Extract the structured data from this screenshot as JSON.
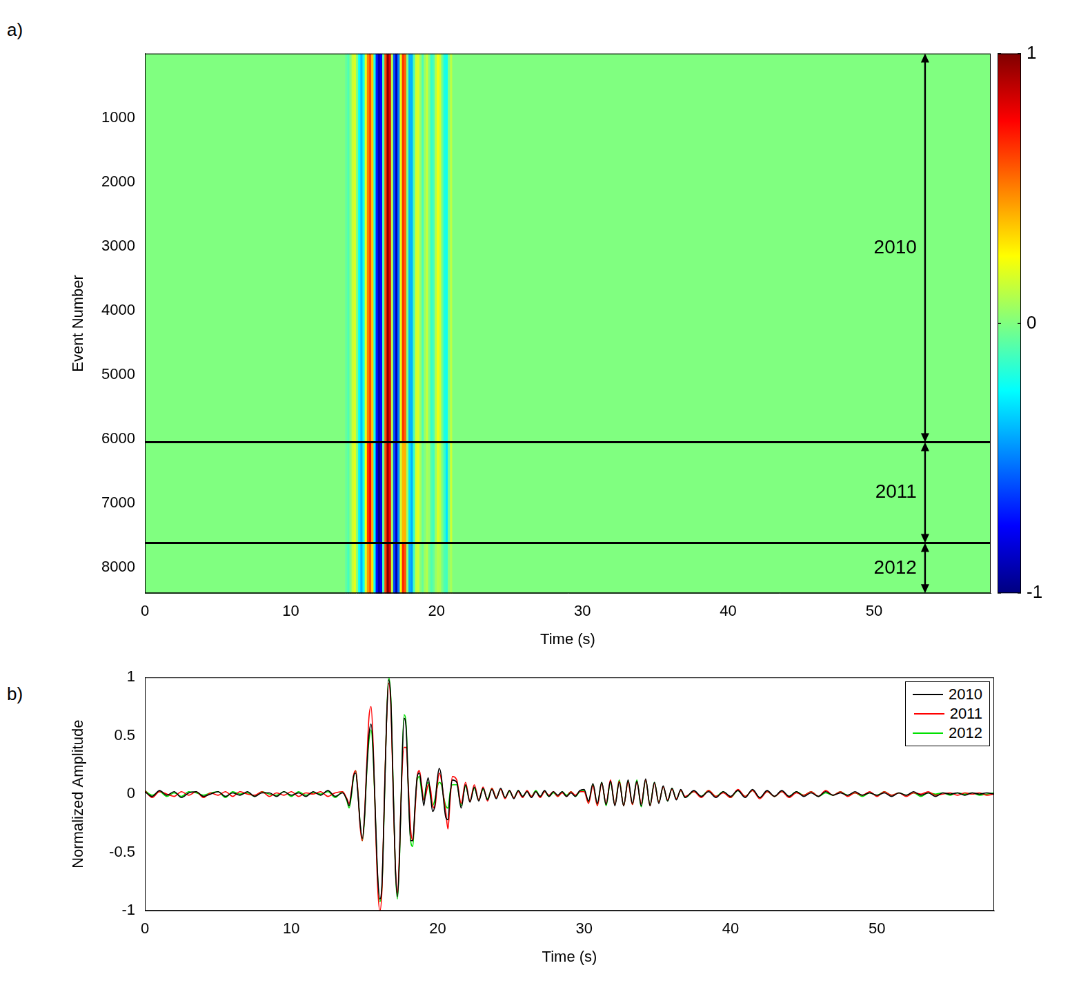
{
  "chart_data": [
    {
      "type": "heatmap",
      "panel_label": "a)",
      "x_label": "Time (s)",
      "y_label": "Event Number",
      "xlim": [
        0,
        58
      ],
      "xticks": [
        0,
        10,
        20,
        30,
        40,
        50
      ],
      "ylim": [
        8400,
        0
      ],
      "yticks": [
        1000,
        2000,
        3000,
        4000,
        5000,
        6000,
        7000,
        8000
      ],
      "grid": false,
      "x_edges": [
        0,
        13.725,
        13.875,
        14.025,
        14.175,
        14.325,
        14.475,
        14.625,
        14.775,
        14.925,
        15.075,
        15.225,
        15.375,
        15.525,
        15.675,
        15.825,
        15.975,
        16.125,
        16.275,
        16.425,
        16.575,
        16.725,
        16.875,
        17.025,
        17.175,
        17.325,
        17.475,
        17.625,
        17.775,
        17.925,
        18.075,
        18.225,
        18.375,
        18.525,
        18.675,
        18.825,
        18.975,
        19.125,
        19.275,
        19.425,
        19.575,
        19.725,
        19.875,
        20.025,
        20.175,
        20.325,
        20.475,
        20.625,
        20.775,
        20.925,
        21.075,
        58
      ],
      "y_edges": [
        0,
        6050,
        7620,
        8400
      ],
      "cells": [
        [
          0,
          -0.05,
          -0.1,
          0.0,
          0.15,
          0.18,
          0.0,
          -0.25,
          -0.38,
          -0.2,
          0.2,
          0.5,
          0.6,
          0.35,
          -0.2,
          -0.7,
          -0.9,
          -0.75,
          -0.1,
          0.6,
          0.98,
          0.8,
          0.1,
          -0.6,
          -0.88,
          -0.5,
          0.2,
          0.65,
          0.55,
          0.0,
          -0.4,
          -0.4,
          -0.1,
          0.15,
          0.18,
          0.05,
          -0.1,
          0.05,
          0.14,
          0.0,
          -0.15,
          -0.1,
          0.1,
          0.22,
          0.15,
          -0.05,
          -0.2,
          -0.22,
          0.0,
          0.12,
          0
        ],
        [
          0,
          -0.04,
          -0.08,
          0.02,
          0.16,
          0.2,
          0.02,
          -0.28,
          -0.4,
          -0.18,
          0.25,
          0.65,
          0.75,
          0.4,
          -0.25,
          -0.8,
          -1.0,
          -0.8,
          -0.05,
          0.6,
          0.95,
          0.75,
          0.05,
          -0.6,
          -0.85,
          -0.45,
          0.15,
          0.4,
          0.4,
          0.05,
          -0.3,
          -0.4,
          -0.15,
          0.15,
          0.2,
          0.08,
          -0.05,
          0.0,
          0.08,
          0.05,
          -0.1,
          -0.12,
          0.05,
          0.18,
          0.12,
          -0.02,
          -0.15,
          -0.3,
          -0.05,
          0.15,
          0
        ],
        [
          0,
          -0.06,
          -0.12,
          -0.02,
          0.14,
          0.2,
          0.02,
          -0.25,
          -0.4,
          -0.22,
          0.18,
          0.45,
          0.55,
          0.3,
          -0.22,
          -0.72,
          -0.92,
          -0.78,
          -0.12,
          0.62,
          1.0,
          0.82,
          0.12,
          -0.62,
          -0.9,
          -0.52,
          0.22,
          0.68,
          0.58,
          0.02,
          -0.4,
          -0.45,
          -0.12,
          0.12,
          0.15,
          0.02,
          -0.05,
          0.06,
          0.1,
          -0.02,
          -0.1,
          -0.05,
          0.05,
          0.1,
          0.08,
          -0.02,
          -0.1,
          -0.12,
          0.02,
          0.08,
          0
        ]
      ],
      "colorbar": {
        "range": [
          -1,
          1
        ],
        "ticks": [
          -1,
          0,
          1
        ]
      },
      "hlines": [
        6050,
        7620
      ],
      "annotations": [
        {
          "text": "2010",
          "x": 53.5,
          "y_range": [
            0,
            6050
          ]
        },
        {
          "text": "2011",
          "x": 53.5,
          "y_range": [
            6050,
            7620
          ]
        },
        {
          "text": "2012",
          "x": 53.5,
          "y_range": [
            7620,
            8400
          ]
        }
      ]
    },
    {
      "type": "line",
      "panel_label": "b)",
      "x_label": "Time (s)",
      "y_label": "Normalized Amplitude",
      "xlim": [
        0,
        58
      ],
      "xticks": [
        0,
        10,
        20,
        30,
        40,
        50
      ],
      "ylim": [
        -1,
        1
      ],
      "yticks": [
        -1,
        -0.5,
        0,
        0.5,
        1
      ],
      "grid": false,
      "legend": "upper right",
      "x": [
        0,
        0.5,
        1,
        1.5,
        2,
        2.5,
        3,
        3.5,
        4,
        4.5,
        5,
        5.5,
        6,
        6.5,
        7,
        7.5,
        8,
        8.5,
        9,
        9.5,
        10,
        10.5,
        11,
        11.5,
        12,
        12.5,
        13,
        13.5,
        13.8,
        13.95,
        14.1,
        14.25,
        14.4,
        14.55,
        14.7,
        14.85,
        15.0,
        15.15,
        15.3,
        15.45,
        15.6,
        15.75,
        15.9,
        16.05,
        16.2,
        16.35,
        16.5,
        16.65,
        16.8,
        16.95,
        17.1,
        17.25,
        17.4,
        17.55,
        17.7,
        17.85,
        18.0,
        18.15,
        18.3,
        18.45,
        18.6,
        18.75,
        18.9,
        19.05,
        19.2,
        19.35,
        19.5,
        19.65,
        19.8,
        19.95,
        20.1,
        20.25,
        20.4,
        20.55,
        20.7,
        20.85,
        21.0,
        21.3,
        21.6,
        21.9,
        22.2,
        22.5,
        22.8,
        23.1,
        23.4,
        23.7,
        24,
        24.3,
        24.6,
        24.9,
        25.2,
        25.5,
        25.8,
        26.1,
        26.4,
        26.7,
        27,
        27.3,
        27.6,
        27.9,
        28.2,
        28.5,
        28.8,
        29.1,
        29.4,
        29.7,
        30,
        30.3,
        30.6,
        30.9,
        31.2,
        31.5,
        31.8,
        32.1,
        32.4,
        32.7,
        33,
        33.3,
        33.6,
        33.9,
        34.2,
        34.5,
        34.8,
        35.1,
        35.4,
        35.7,
        36,
        36.3,
        36.6,
        36.9,
        37.5,
        38,
        38.5,
        39,
        39.5,
        40,
        40.5,
        41,
        41.5,
        42,
        42.5,
        43,
        43.5,
        44,
        44.5,
        45,
        45.5,
        46,
        46.5,
        47,
        47.5,
        48,
        48.5,
        49,
        49.5,
        50,
        50.5,
        51,
        51.5,
        52,
        52.5,
        53,
        53.5,
        54,
        54.5,
        55,
        55.5,
        56,
        56.5,
        57,
        57.5,
        58
      ],
      "series": [
        {
          "name": "2010",
          "color": "#000000",
          "values": [
            0.02,
            -0.02,
            0.03,
            -0.01,
            0.02,
            -0.03,
            0.01,
            0.02,
            -0.02,
            0.0,
            0.02,
            -0.02,
            0.01,
            -0.01,
            0.02,
            -0.02,
            0.01,
            0.01,
            -0.02,
            0.02,
            -0.01,
            0.01,
            -0.02,
            0.02,
            -0.01,
            0.03,
            -0.02,
            0.01,
            -0.05,
            -0.1,
            0.0,
            0.15,
            0.18,
            0.0,
            -0.25,
            -0.38,
            -0.2,
            0.2,
            0.5,
            0.6,
            0.35,
            -0.2,
            -0.7,
            -0.9,
            -0.75,
            -0.1,
            0.6,
            0.98,
            0.8,
            0.1,
            -0.6,
            -0.88,
            -0.5,
            0.2,
            0.65,
            0.55,
            0.0,
            -0.4,
            -0.4,
            -0.1,
            0.15,
            0.18,
            0.05,
            -0.1,
            0.05,
            0.14,
            0.0,
            -0.15,
            -0.1,
            0.1,
            0.22,
            0.15,
            -0.05,
            -0.2,
            -0.22,
            0.0,
            0.12,
            0.1,
            -0.12,
            0.08,
            -0.07,
            0.06,
            -0.06,
            0.05,
            -0.05,
            0.04,
            -0.04,
            0.05,
            -0.03,
            0.03,
            -0.04,
            0.03,
            -0.02,
            0.02,
            -0.03,
            0.02,
            -0.02,
            0.03,
            -0.02,
            0.02,
            -0.01,
            0.02,
            -0.02,
            0.01,
            -0.02,
            0.03,
            0.04,
            -0.06,
            0.09,
            -0.08,
            0.1,
            -0.09,
            0.11,
            -0.1,
            0.1,
            -0.1,
            0.12,
            -0.08,
            0.11,
            -0.1,
            0.13,
            -0.1,
            0.1,
            -0.08,
            0.07,
            -0.06,
            0.05,
            -0.05,
            0.04,
            -0.03,
            0.03,
            -0.02,
            0.02,
            -0.03,
            0.02,
            -0.02,
            0.03,
            -0.03,
            0.04,
            -0.03,
            0.03,
            -0.02,
            0.03,
            -0.02,
            0.02,
            -0.02,
            0.01,
            -0.02,
            0.02,
            -0.01,
            0.01,
            -0.01,
            0.02,
            -0.01,
            0.01,
            -0.01,
            0.01,
            -0.02,
            0.01,
            -0.01,
            0.02,
            -0.01,
            0.01,
            -0.02,
            0.01,
            0.0,
            0.01,
            -0.01,
            0.01,
            0.0,
            0.01,
            0.0
          ]
        },
        {
          "name": "2011",
          "color": "#ff0000",
          "values": [
            0.03,
            -0.03,
            0.02,
            0.0,
            -0.02,
            0.02,
            -0.01,
            0.02,
            -0.03,
            0.01,
            -0.01,
            0.02,
            -0.02,
            0.02,
            0.0,
            -0.01,
            0.02,
            -0.02,
            0.01,
            -0.01,
            0.02,
            -0.02,
            0.01,
            0.0,
            0.02,
            -0.02,
            0.01,
            0.02,
            -0.04,
            -0.08,
            0.02,
            0.16,
            0.2,
            0.02,
            -0.28,
            -0.4,
            -0.18,
            0.25,
            0.65,
            0.75,
            0.4,
            -0.25,
            -0.8,
            -1.0,
            -0.8,
            -0.05,
            0.6,
            0.95,
            0.75,
            0.05,
            -0.6,
            -0.85,
            -0.45,
            0.15,
            0.4,
            0.4,
            0.05,
            -0.3,
            -0.4,
            -0.15,
            0.15,
            0.2,
            0.08,
            -0.05,
            0.0,
            0.08,
            0.05,
            -0.1,
            -0.12,
            0.05,
            0.18,
            0.12,
            -0.02,
            -0.15,
            -0.3,
            -0.05,
            0.15,
            0.12,
            -0.08,
            0.1,
            -0.06,
            0.08,
            -0.05,
            0.06,
            -0.06,
            0.05,
            -0.03,
            0.04,
            -0.04,
            0.03,
            -0.03,
            0.02,
            -0.03,
            0.03,
            -0.02,
            0.02,
            -0.03,
            0.02,
            -0.01,
            0.02,
            -0.02,
            0.01,
            -0.02,
            0.02,
            -0.01,
            0.02,
            0.02,
            -0.08,
            0.07,
            -0.1,
            0.09,
            -0.08,
            0.12,
            -0.09,
            0.11,
            -0.1,
            0.1,
            -0.09,
            0.1,
            -0.08,
            0.12,
            -0.1,
            0.09,
            -0.07,
            0.06,
            -0.05,
            0.04,
            -0.04,
            0.03,
            -0.02,
            0.02,
            -0.03,
            0.03,
            -0.02,
            0.01,
            -0.03,
            0.04,
            -0.02,
            0.03,
            -0.04,
            0.02,
            -0.02,
            0.02,
            -0.03,
            0.01,
            -0.01,
            0.02,
            -0.02,
            0.03,
            -0.01,
            0.02,
            -0.02,
            0.01,
            -0.01,
            0.02,
            -0.02,
            0.02,
            -0.01,
            0.01,
            -0.02,
            0.01,
            0.0,
            0.02,
            -0.01,
            0.0,
            0.01,
            -0.01,
            0.01,
            0.0,
            0.01,
            -0.01,
            0.0
          ]
        },
        {
          "name": "2012",
          "color": "#00e000",
          "values": [
            0.03,
            -0.01,
            0.02,
            -0.02,
            0.01,
            -0.02,
            0.02,
            0.01,
            -0.01,
            0.01,
            0.02,
            -0.03,
            0.02,
            0.0,
            0.01,
            -0.02,
            0.02,
            0.0,
            -0.01,
            0.02,
            -0.02,
            0.02,
            -0.01,
            0.01,
            0.0,
            0.02,
            -0.03,
            0.02,
            -0.06,
            -0.12,
            -0.02,
            0.14,
            0.2,
            0.02,
            -0.25,
            -0.4,
            -0.22,
            0.18,
            0.45,
            0.55,
            0.3,
            -0.22,
            -0.72,
            -0.92,
            -0.78,
            -0.12,
            0.62,
            1.0,
            0.82,
            0.12,
            -0.62,
            -0.9,
            -0.52,
            0.22,
            0.68,
            0.58,
            0.02,
            -0.4,
            -0.45,
            -0.12,
            0.12,
            0.15,
            0.02,
            -0.05,
            0.06,
            0.1,
            -0.02,
            -0.1,
            -0.05,
            0.05,
            0.1,
            0.08,
            -0.02,
            -0.1,
            -0.12,
            0.02,
            0.08,
            0.08,
            -0.1,
            0.07,
            -0.06,
            0.05,
            -0.05,
            0.04,
            -0.04,
            0.05,
            -0.03,
            0.04,
            -0.03,
            0.02,
            -0.03,
            0.03,
            -0.02,
            0.02,
            -0.02,
            0.03,
            -0.02,
            0.02,
            -0.02,
            0.01,
            -0.02,
            0.02,
            -0.01,
            0.02,
            -0.02,
            0.02,
            0.03,
            -0.07,
            0.08,
            -0.09,
            0.1,
            -0.1,
            0.1,
            -0.09,
            0.12,
            -0.1,
            0.11,
            -0.09,
            0.12,
            -0.11,
            0.12,
            -0.09,
            0.1,
            -0.07,
            0.06,
            -0.06,
            0.05,
            -0.04,
            0.03,
            -0.03,
            0.02,
            -0.02,
            0.03,
            -0.02,
            0.02,
            -0.03,
            0.03,
            -0.02,
            0.03,
            -0.03,
            0.02,
            -0.02,
            0.02,
            -0.02,
            0.02,
            -0.01,
            0.02,
            -0.02,
            0.01,
            -0.01,
            0.02,
            -0.01,
            0.01,
            -0.02,
            0.01,
            -0.01,
            0.02,
            -0.01,
            0.01,
            -0.01,
            0.01,
            -0.02,
            0.01,
            0.0,
            0.01,
            -0.01,
            0.01,
            0.0,
            0.01,
            -0.01,
            0.0,
            0.01
          ]
        }
      ]
    }
  ]
}
